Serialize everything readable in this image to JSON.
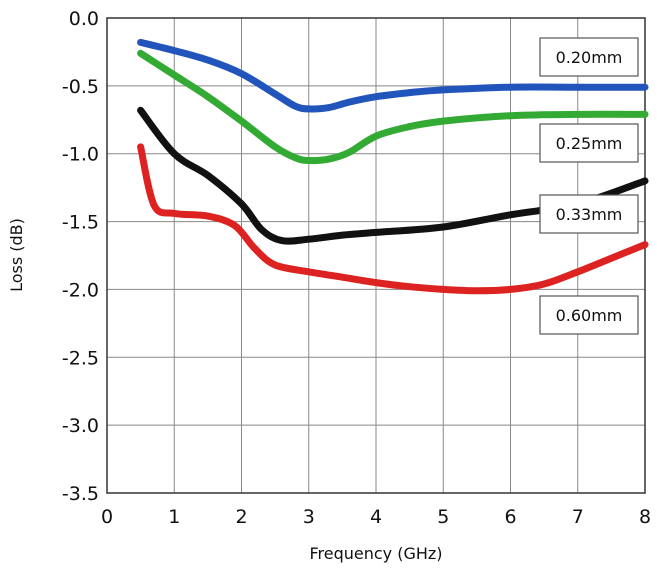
{
  "chart_data": {
    "type": "line",
    "title": "",
    "xlabel": "Frequency (GHz)",
    "ylabel": "Loss (dB)",
    "xlim": [
      0,
      8
    ],
    "ylim": [
      -3.5,
      0.0
    ],
    "xticks": [
      "0",
      "1",
      "2",
      "3",
      "4",
      "5",
      "6",
      "7",
      "8"
    ],
    "yticks": [
      "0.0",
      "-0.5",
      "-1.0",
      "-1.5",
      "-2.0",
      "-2.5",
      "-3.0",
      "-3.5"
    ],
    "grid": true,
    "series": [
      {
        "name": "0.20mm",
        "color": "#2255bb",
        "x": [
          0.5,
          1.0,
          1.5,
          2.0,
          2.5,
          2.8,
          3.0,
          3.3,
          3.6,
          4.0,
          4.5,
          5.0,
          6.0,
          7.0,
          8.0
        ],
        "y": [
          -0.18,
          -0.24,
          -0.31,
          -0.41,
          -0.56,
          -0.65,
          -0.67,
          -0.66,
          -0.62,
          -0.58,
          -0.55,
          -0.53,
          -0.51,
          -0.51,
          -0.51
        ]
      },
      {
        "name": "0.25mm",
        "color": "#33aa33",
        "x": [
          0.5,
          1.0,
          1.5,
          2.0,
          2.5,
          2.8,
          3.0,
          3.3,
          3.6,
          4.0,
          4.5,
          5.0,
          6.0,
          7.0,
          8.0
        ],
        "y": [
          -0.26,
          -0.42,
          -0.58,
          -0.76,
          -0.95,
          -1.03,
          -1.05,
          -1.04,
          -0.99,
          -0.87,
          -0.8,
          -0.76,
          -0.72,
          -0.71,
          -0.71
        ]
      },
      {
        "name": "0.33mm",
        "color": "#111111",
        "x": [
          0.5,
          1.0,
          1.5,
          2.0,
          2.3,
          2.6,
          3.0,
          3.5,
          4.0,
          5.0,
          6.0,
          7.0,
          8.0
        ],
        "y": [
          -0.68,
          -1.0,
          -1.16,
          -1.37,
          -1.56,
          -1.64,
          -1.63,
          -1.6,
          -1.58,
          -1.54,
          -1.45,
          -1.37,
          -1.2
        ]
      },
      {
        "name": "0.60mm",
        "color": "#dd2222",
        "x": [
          0.5,
          0.7,
          1.0,
          1.5,
          1.9,
          2.2,
          2.5,
          3.0,
          3.5,
          4.0,
          4.5,
          5.0,
          5.5,
          6.0,
          6.5,
          7.0,
          7.5,
          8.0
        ],
        "y": [
          -0.95,
          -1.38,
          -1.44,
          -1.46,
          -1.53,
          -1.7,
          -1.82,
          -1.87,
          -1.91,
          -1.95,
          -1.98,
          -2.0,
          -2.01,
          -2.0,
          -1.96,
          -1.87,
          -1.77,
          -1.67
        ]
      }
    ],
    "annotations": [
      {
        "text": "0.20mm",
        "series": "0.20mm"
      },
      {
        "text": "0.25mm",
        "series": "0.25mm"
      },
      {
        "text": "0.33mm",
        "series": "0.33mm"
      },
      {
        "text": "0.60mm",
        "series": "0.60mm"
      }
    ]
  }
}
